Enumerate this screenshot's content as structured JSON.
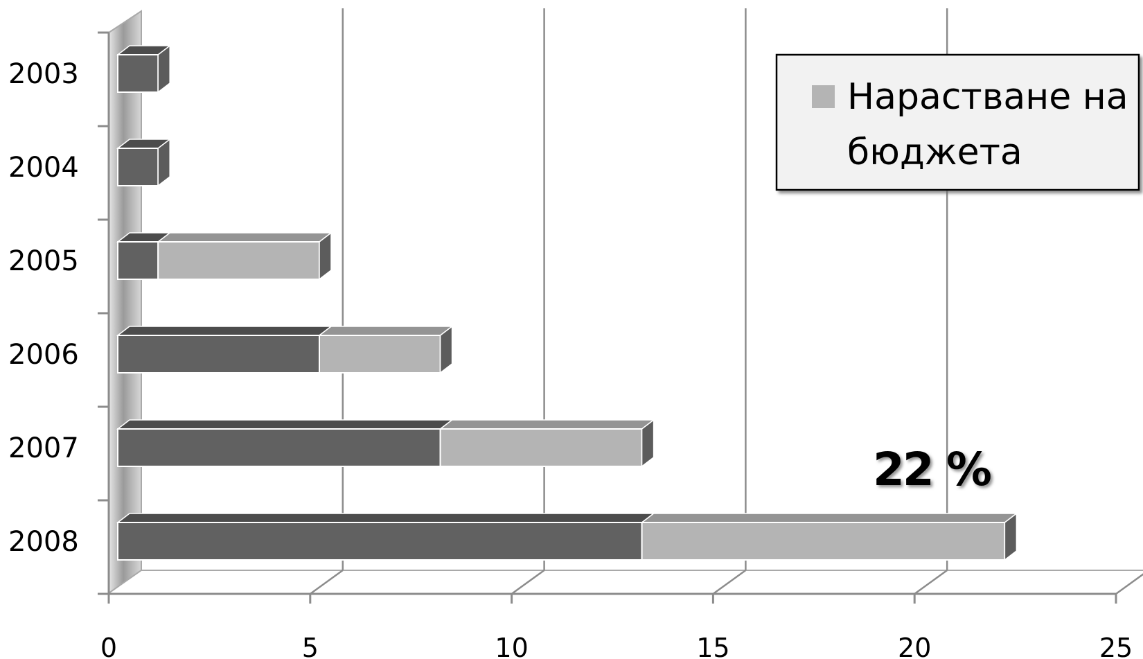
{
  "chart_data": {
    "type": "bar",
    "orientation": "horizontal",
    "stacked": true,
    "style": "3d",
    "categories": [
      "2003",
      "2004",
      "2005",
      "2006",
      "2007",
      "2008"
    ],
    "series": [
      {
        "values": [
          1,
          1,
          1,
          5,
          8,
          13
        ],
        "color": "#616161"
      },
      {
        "name": "Нарастване на бюджета",
        "values": [
          0,
          0,
          4,
          3,
          5,
          9
        ],
        "color": "#b4b4b4"
      }
    ],
    "xlim": [
      0,
      25
    ],
    "x_ticks": [
      "0",
      "5",
      "10",
      "15",
      "20",
      "25"
    ],
    "grid": "vertical",
    "legend": {
      "position": "top-right",
      "lines": [
        "Нарастване на",
        "бюджета"
      ]
    },
    "annotation": {
      "text": "22 %",
      "near": "2008"
    }
  }
}
